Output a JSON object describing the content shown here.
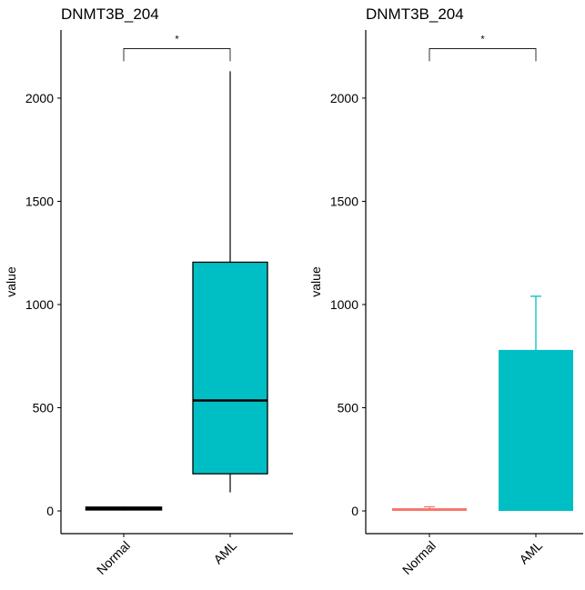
{
  "chart_data": [
    {
      "type": "box",
      "title": "DNMT3B_204",
      "ylabel": "value",
      "xlabel": "",
      "ylim": [
        -110,
        2330
      ],
      "yticks": [
        0,
        500,
        1000,
        1500,
        2000
      ],
      "categories": [
        "Normal",
        "AML"
      ],
      "boxes": [
        {
          "category": "Normal",
          "min": 2,
          "q1": 8,
          "median": 12,
          "q3": 16,
          "max": 20,
          "color": "#000000"
        },
        {
          "category": "AML",
          "min": 90,
          "q1": 180,
          "median": 535,
          "q3": 1205,
          "max": 2130,
          "color": "#00BFC4"
        }
      ],
      "significance": {
        "from": "Normal",
        "to": "AML",
        "y": 2240,
        "label": "*"
      },
      "grid": false,
      "legend": "none"
    },
    {
      "type": "bar",
      "title": "DNMT3B_204",
      "ylabel": "value",
      "xlabel": "",
      "ylim": [
        -110,
        2330
      ],
      "yticks": [
        0,
        500,
        1000,
        1500,
        2000
      ],
      "categories": [
        "Normal",
        "AML"
      ],
      "values": [
        12,
        780
      ],
      "errors_upper": [
        20,
        1040
      ],
      "colors": [
        "#F8766D",
        "#00BFC4"
      ],
      "significance": {
        "from": "Normal",
        "to": "AML",
        "y": 2240,
        "label": "*"
      },
      "grid": false,
      "legend": "none"
    }
  ]
}
